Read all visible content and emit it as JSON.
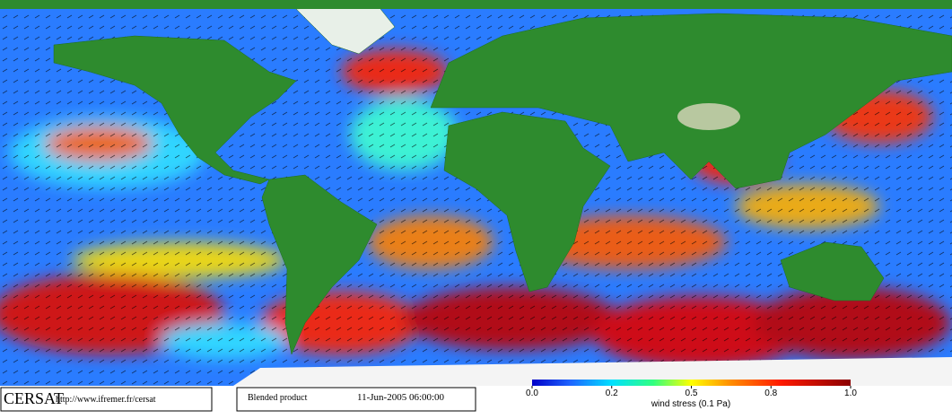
{
  "logo": "CERSAT",
  "url": "http://www.ifremer.fr/cersat",
  "product": "Blended product",
  "timestamp": "11-Jun-2005 06:00:00",
  "colorbar": {
    "label": "wind stress (0.1 Pa)",
    "ticks": [
      {
        "value": 0,
        "label": "0.0"
      },
      0.2,
      0.5,
      0.8,
      {
        "value": 1,
        "label": "1.0"
      }
    ]
  }
}
